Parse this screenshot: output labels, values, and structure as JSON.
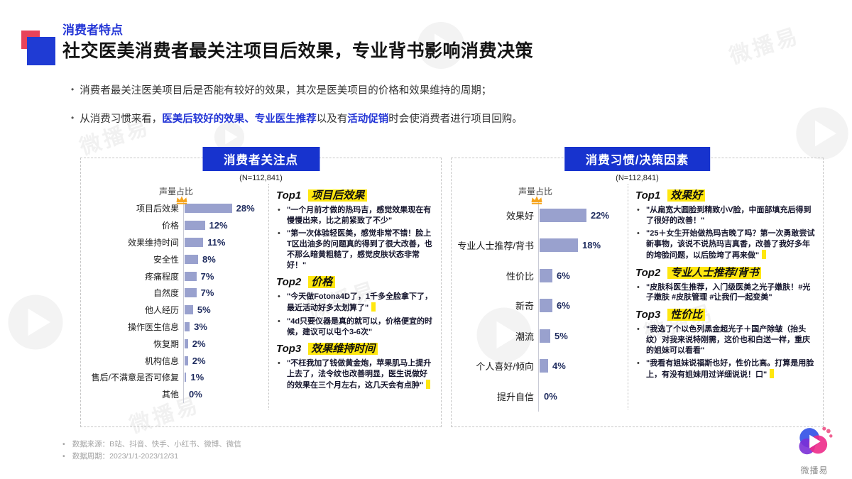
{
  "header": {
    "eyebrow": "消费者特点",
    "title": "社交医美消费者最关注项目后效果，专业背书影响消费决策"
  },
  "bullets": [
    {
      "segments": [
        {
          "text": "消费者最关注医美项目后是否能有较好的效果，其次是医美项目的价格和效果维持的周期；",
          "highlight": false
        }
      ]
    },
    {
      "segments": [
        {
          "text": "从消费习惯来看，",
          "highlight": false
        },
        {
          "text": "医美后较好的效果、专业医生推荐",
          "highlight": true
        },
        {
          "text": "以及有",
          "highlight": false
        },
        {
          "text": "活动促销",
          "highlight": true
        },
        {
          "text": "时会使消费者进行项目回购。",
          "highlight": false
        }
      ]
    }
  ],
  "chart_data": [
    {
      "type": "bar",
      "orientation": "horizontal",
      "title": "消费者关注点",
      "sample_note": "(N=112,841)",
      "axis_label": "声量占比",
      "categories": [
        "项目后效果",
        "价格",
        "效果维持时间",
        "安全性",
        "疼痛程度",
        "自然度",
        "他人经历",
        "操作医生信息",
        "恢复期",
        "机构信息",
        "售后/不满意是否可修复",
        "其他"
      ],
      "values": [
        28,
        12,
        11,
        8,
        7,
        7,
        5,
        3,
        2,
        2,
        1,
        0
      ],
      "unit": "%",
      "xlim": [
        0,
        30
      ],
      "bar_color": "#99A1CE",
      "crown_on_first": true,
      "grid": false,
      "legend": "none"
    },
    {
      "type": "bar",
      "orientation": "horizontal",
      "title": "消费习惯/决策因素",
      "sample_note": "(N=112,841)",
      "axis_label": "声量占比",
      "categories": [
        "效果好",
        "专业人士推荐/背书",
        "性价比",
        "新奇",
        "潮流",
        "个人喜好/倾向",
        "提升自信"
      ],
      "values": [
        22,
        18,
        6,
        6,
        5,
        4,
        0
      ],
      "unit": "%",
      "xlim": [
        0,
        25
      ],
      "bar_color": "#99A1CE",
      "crown_on_first": true,
      "grid": false,
      "legend": "none"
    }
  ],
  "panels": [
    {
      "tops": [
        {
          "rank": "Top1",
          "keyword": "项目后效果",
          "quotes": [
            {
              "text": "\"一个月前才做的热玛吉，感觉效果现在有慢慢出来，比之前紧致了不少\"",
              "mark": false
            },
            {
              "text": "\"第一次体验轻医美，感觉非常不错！脸上T区出油多的问题真的得到了很大改善，也不那么暗黄粗糙了，感觉皮肤状态非常好！\"",
              "mark": false
            }
          ]
        },
        {
          "rank": "Top2",
          "keyword": "价格",
          "quotes": [
            {
              "text": "\"今天做Fotona4D了，1千多全脸拿下了，最近活动好多太划算了\"",
              "mark": true
            },
            {
              "text": "\"4d只要仪器是真的就可以，价格便宜的时候，建议可以屯个3-6次\"",
              "mark": false
            }
          ]
        },
        {
          "rank": "Top3",
          "keyword": "效果维持时间",
          "quotes": [
            {
              "text": "\"不枉我加了钱做黄金炮，苹果肌马上提升上去了，法令纹也改善明显，医生说做好的效果在三个月左右，这几天会有点肿\"",
              "mark": true
            }
          ]
        }
      ]
    },
    {
      "tops": [
        {
          "rank": "Top1",
          "keyword": "效果好",
          "quotes": [
            {
              "text": "\"从扁宽大圆脸到精致小V脸，中面部填充后得到了很好的改善！\"",
              "mark": false
            },
            {
              "text": "\"25＋女生开始做热玛吉晚了吗？第一次勇敢尝试新事物，该说不说热玛吉真香，改善了我好多年的垮脸问题，以后脸垮了再来做\"",
              "mark": true
            }
          ]
        },
        {
          "rank": "Top2",
          "keyword": "专业人士推荐/背书",
          "quotes": [
            {
              "text": "\"皮肤科医生推荐，入门级医美之光子嫩肤！#光子嫩肤 #皮肤管理 #让我们一起变美\"",
              "mark": false
            }
          ]
        },
        {
          "rank": "Top3",
          "keyword": "性价比",
          "quotes": [
            {
              "text": "\"我选了个以色列黑金超光子＋国产除皱（抬头纹）对我来说特刚需，这价也和白送一样，重庆的姐妹可以看看\"",
              "mark": false
            },
            {
              "text": "\"我看有姐妹说福斯也好，性价比高。打算是用脸上，有没有姐妹用过详细说说！口\"",
              "mark": true
            }
          ]
        }
      ]
    }
  ],
  "footer": {
    "source": "数据来源：B站、抖音、快手、小红书、微博、微信",
    "period": "数据周期：2023/1/1-2023/12/31"
  },
  "logo": {
    "label": "微播易"
  },
  "watermark_text": "微播易",
  "colors": {
    "accent_blue": "#1F3BD4",
    "accent_red": "#E8435A",
    "header_box_blue": "#1733CE",
    "bar_fill": "#99A1CE",
    "highlight_yellow": "#FFE70F",
    "crown_gold": "#F6A41C"
  }
}
